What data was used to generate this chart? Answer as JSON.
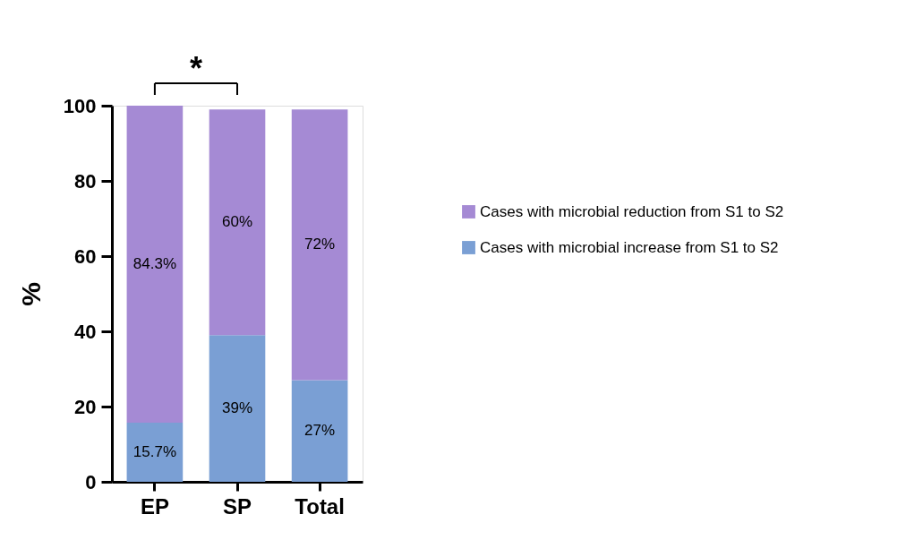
{
  "chart_data": {
    "type": "bar",
    "stacked": true,
    "ylabel": "%",
    "categories": [
      "EP",
      "SP",
      "Total"
    ],
    "series": [
      {
        "name": "Cases with microbial increase from S1 to S2",
        "color": "#7a9fd4",
        "values": [
          15.7,
          39,
          27
        ],
        "value_labels": [
          "15.7%",
          "39%",
          "27%"
        ]
      },
      {
        "name": "Cases with microbial reduction from S1 to S2",
        "color": "#a58ad4",
        "values": [
          84.3,
          60,
          72
        ],
        "value_labels": [
          "84.3%",
          "60%",
          "72%"
        ]
      }
    ],
    "ylim": [
      0,
      100
    ],
    "yticks": [
      0,
      20,
      40,
      60,
      80,
      100
    ],
    "grid": false,
    "legend": "right",
    "annotations": [
      "*"
    ]
  }
}
